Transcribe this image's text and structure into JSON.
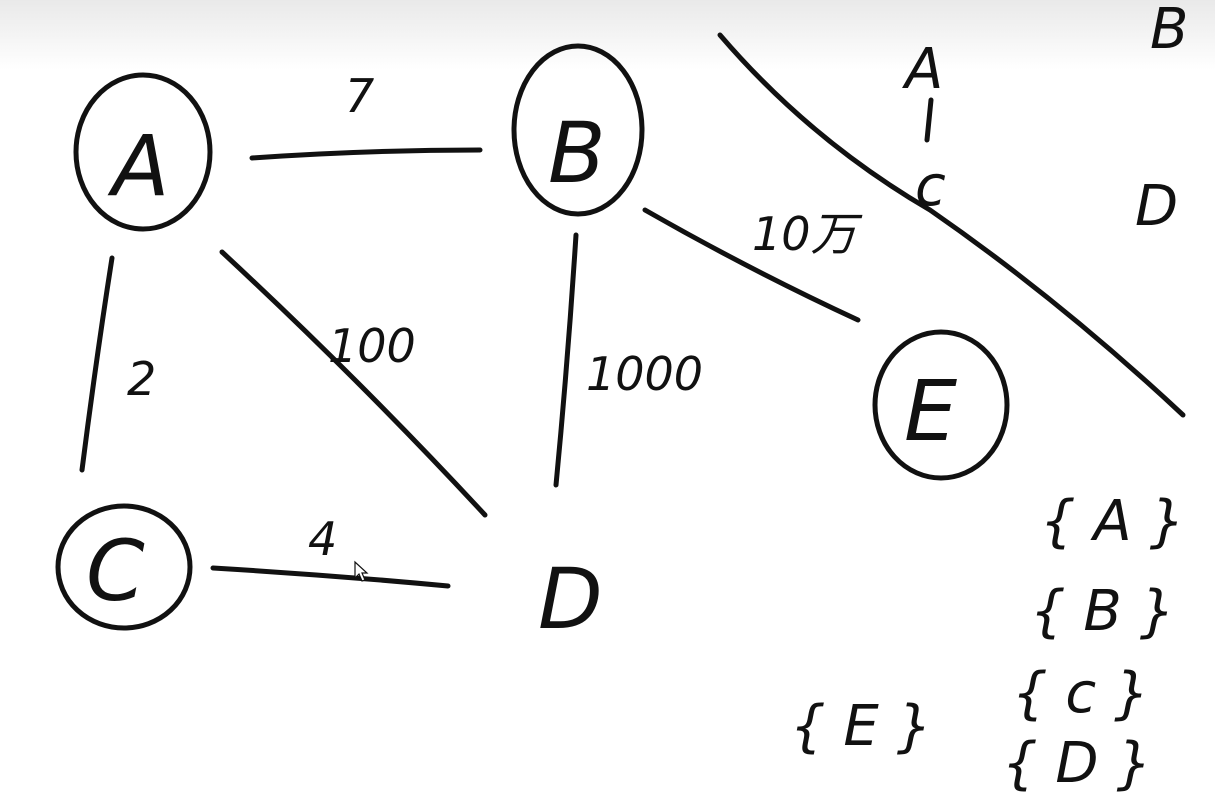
{
  "nodes": [
    {
      "id": "A",
      "label": "A",
      "circled": true
    },
    {
      "id": "B",
      "label": "B",
      "circled": true
    },
    {
      "id": "C",
      "label": "C",
      "circled": true
    },
    {
      "id": "D",
      "label": "D",
      "circled": false
    },
    {
      "id": "E",
      "label": "E",
      "circled": true
    }
  ],
  "edges": [
    {
      "from": "A",
      "to": "B",
      "weight": "7"
    },
    {
      "from": "A",
      "to": "C",
      "weight": "2"
    },
    {
      "from": "A",
      "to": "D",
      "weight": "100"
    },
    {
      "from": "B",
      "to": "D",
      "weight": "1000"
    },
    {
      "from": "B",
      "to": "E",
      "weight": "10万"
    },
    {
      "from": "C",
      "to": "D",
      "weight": "4"
    }
  ],
  "notes": {
    "top_right_b": "B",
    "tree_a": "A",
    "tree_c": "c",
    "tree_d": "D",
    "set_a": "{ A }",
    "set_b": "{ B }",
    "set_c": "{ c }",
    "set_d": "{ D }",
    "set_e": "{ E }"
  },
  "colors": {
    "ink": "#111111",
    "board": "#ffffff"
  }
}
